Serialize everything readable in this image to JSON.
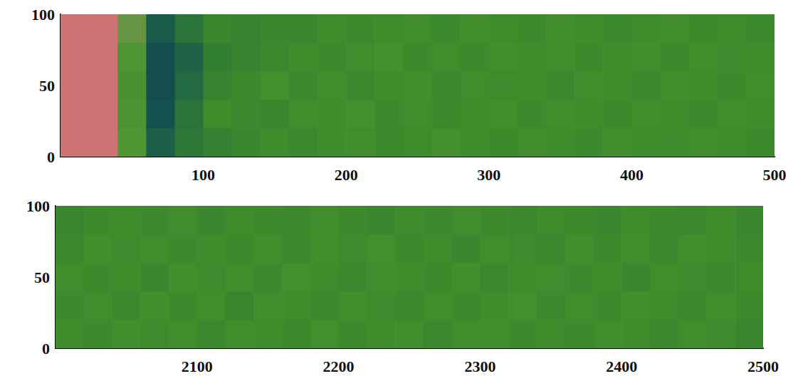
{
  "chart_data": [
    {
      "type": "heatmap",
      "grid": false,
      "xlim": [
        0,
        500
      ],
      "xticks": [
        100,
        200,
        300,
        400,
        500
      ],
      "ylim": [
        0,
        100
      ],
      "yticks": [
        0,
        50,
        100
      ],
      "zlim": [
        0,
        1
      ],
      "x_edges": [
        0,
        20,
        40,
        60,
        80,
        100,
        120,
        140,
        160,
        180,
        200,
        220,
        240,
        260,
        280,
        300,
        320,
        340,
        360,
        380,
        400,
        420,
        440,
        460,
        480,
        500
      ],
      "y_edges": [
        0,
        20,
        40,
        60,
        80,
        100
      ],
      "cells": [
        [
          1,
          1,
          0.66,
          0.2,
          0.32,
          0.4,
          0.45,
          0.5,
          0.46,
          0.5,
          0.52,
          0.48,
          0.5,
          0.55,
          0.5,
          0.48,
          0.52,
          0.5,
          0.47,
          0.53,
          0.5,
          0.49,
          0.52,
          0.5,
          0.48
        ],
        [
          1,
          1,
          0.64,
          0.12,
          0.3,
          0.5,
          0.46,
          0.44,
          0.52,
          0.5,
          0.55,
          0.47,
          0.52,
          0.48,
          0.5,
          0.53,
          0.47,
          0.51,
          0.5,
          0.48,
          0.52,
          0.5,
          0.47,
          0.51,
          0.5
        ],
        [
          1,
          1,
          0.6,
          0.1,
          0.25,
          0.42,
          0.48,
          0.55,
          0.47,
          0.52,
          0.46,
          0.5,
          0.53,
          0.47,
          0.52,
          0.49,
          0.5,
          0.46,
          0.52,
          0.5,
          0.47,
          0.53,
          0.5,
          0.48,
          0.52
        ],
        [
          1,
          1,
          0.65,
          0.1,
          0.22,
          0.38,
          0.42,
          0.46,
          0.5,
          0.47,
          0.52,
          0.55,
          0.48,
          0.51,
          0.47,
          0.53,
          0.5,
          0.52,
          0.48,
          0.5,
          0.53,
          0.47,
          0.51,
          0.49,
          0.5
        ],
        [
          1,
          1,
          0.7,
          0.18,
          0.3,
          0.44,
          0.42,
          0.45,
          0.44,
          0.5,
          0.48,
          0.5,
          0.52,
          0.47,
          0.53,
          0.5,
          0.48,
          0.52,
          0.5,
          0.47,
          0.5,
          0.52,
          0.48,
          0.5,
          0.47
        ]
      ]
    },
    {
      "type": "heatmap",
      "grid": false,
      "xlim": [
        2000,
        2500
      ],
      "xticks": [
        2100,
        2200,
        2300,
        2400,
        2500
      ],
      "ylim": [
        0,
        100
      ],
      "yticks": [
        0,
        50,
        100
      ],
      "zlim": [
        0,
        1
      ],
      "x_edges": [
        2000,
        2020,
        2040,
        2060,
        2080,
        2100,
        2120,
        2140,
        2160,
        2180,
        2200,
        2220,
        2240,
        2260,
        2280,
        2300,
        2320,
        2340,
        2360,
        2380,
        2400,
        2420,
        2440,
        2460,
        2480,
        2500
      ],
      "y_edges": [
        0,
        20,
        40,
        60,
        80,
        100
      ],
      "cells": [
        [
          0.5,
          0.47,
          0.53,
          0.49,
          0.51,
          0.46,
          0.52,
          0.5,
          0.48,
          0.54,
          0.47,
          0.5,
          0.52,
          0.46,
          0.51,
          0.53,
          0.48,
          0.5,
          0.47,
          0.52,
          0.5,
          0.46,
          0.51,
          0.49,
          0.44
        ],
        [
          0.47,
          0.52,
          0.46,
          0.53,
          0.48,
          0.51,
          0.44,
          0.52,
          0.5,
          0.47,
          0.53,
          0.49,
          0.46,
          0.52,
          0.48,
          0.5,
          0.54,
          0.47,
          0.51,
          0.48,
          0.53,
          0.5,
          0.47,
          0.52,
          0.48
        ],
        [
          0.52,
          0.48,
          0.5,
          0.45,
          0.53,
          0.49,
          0.52,
          0.47,
          0.54,
          0.5,
          0.46,
          0.52,
          0.5,
          0.48,
          0.53,
          0.46,
          0.5,
          0.52,
          0.47,
          0.5,
          0.45,
          0.52,
          0.49,
          0.47,
          0.5
        ],
        [
          0.46,
          0.53,
          0.49,
          0.52,
          0.47,
          0.5,
          0.48,
          0.53,
          0.46,
          0.51,
          0.49,
          0.54,
          0.47,
          0.5,
          0.45,
          0.52,
          0.49,
          0.46,
          0.53,
          0.48,
          0.51,
          0.47,
          0.53,
          0.5,
          0.47
        ],
        [
          0.44,
          0.48,
          0.5,
          0.47,
          0.52,
          0.45,
          0.5,
          0.48,
          0.46,
          0.52,
          0.48,
          0.45,
          0.5,
          0.47,
          0.52,
          0.48,
          0.46,
          0.5,
          0.48,
          0.45,
          0.5,
          0.48,
          0.46,
          0.5,
          0.45
        ]
      ]
    }
  ]
}
